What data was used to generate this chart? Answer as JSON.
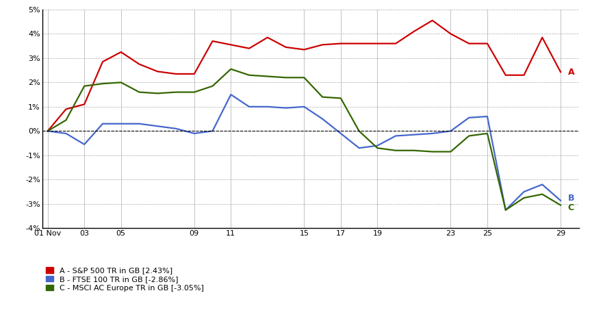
{
  "x_labels": [
    "01 Nov",
    "03",
    "05",
    "09",
    "11",
    "15",
    "17",
    "19",
    "23",
    "25",
    "29"
  ],
  "x_positions": [
    0,
    2,
    4,
    8,
    10,
    14,
    16,
    18,
    22,
    24,
    28
  ],
  "series": {
    "A": {
      "label": "A - S&P 500 TR in GB [2.43%]",
      "color": "#cc0000",
      "data_x": [
        0,
        1,
        2,
        3,
        4,
        5,
        6,
        7,
        8,
        9,
        10,
        11,
        12,
        13,
        14,
        15,
        16,
        17,
        18,
        19,
        20,
        21,
        22,
        23,
        24,
        25,
        26,
        27,
        28
      ],
      "data_y": [
        0.0,
        0.9,
        1.1,
        2.85,
        3.25,
        2.75,
        2.45,
        2.35,
        2.35,
        3.7,
        3.55,
        3.4,
        3.85,
        3.45,
        3.35,
        3.55,
        3.6,
        3.6,
        3.6,
        3.6,
        4.1,
        4.55,
        4.0,
        3.6,
        3.6,
        2.3,
        2.3,
        3.85,
        2.43
      ]
    },
    "B": {
      "label": "B - FTSE 100 TR in GB [-2.86%]",
      "color": "#4466cc",
      "data_x": [
        0,
        1,
        2,
        3,
        4,
        5,
        6,
        7,
        8,
        9,
        10,
        11,
        12,
        13,
        14,
        15,
        16,
        17,
        18,
        19,
        20,
        21,
        22,
        23,
        24,
        25,
        26,
        27,
        28
      ],
      "data_y": [
        0.0,
        -0.1,
        -0.55,
        0.3,
        0.3,
        0.3,
        0.2,
        0.1,
        -0.1,
        0.0,
        1.5,
        1.0,
        1.0,
        0.95,
        1.0,
        0.5,
        -0.1,
        -0.7,
        -0.6,
        -0.2,
        -0.15,
        -0.1,
        0.0,
        0.55,
        0.6,
        -3.25,
        -2.5,
        -2.2,
        -2.86
      ]
    },
    "C": {
      "label": "C - MSCI AC Europe TR in GB [-3.05%]",
      "color": "#336600",
      "data_x": [
        0,
        1,
        2,
        3,
        4,
        5,
        6,
        7,
        8,
        9,
        10,
        11,
        12,
        13,
        14,
        15,
        16,
        17,
        18,
        19,
        20,
        21,
        22,
        23,
        24,
        25,
        26,
        27,
        28
      ],
      "data_y": [
        0.0,
        0.45,
        1.85,
        1.95,
        2.0,
        1.6,
        1.55,
        1.6,
        1.6,
        1.85,
        2.55,
        2.3,
        2.25,
        2.2,
        2.2,
        1.4,
        1.35,
        0.0,
        -0.7,
        -0.8,
        -0.8,
        -0.85,
        -0.85,
        -0.2,
        -0.1,
        -3.25,
        -2.75,
        -2.6,
        -3.05
      ]
    }
  },
  "series_order": [
    "A",
    "B",
    "C"
  ],
  "label_offsets": {
    "A": 0.0,
    "B": 0.1,
    "C": -0.1
  },
  "ylim": [
    -4,
    5
  ],
  "yticks": [
    -4,
    -3,
    -2,
    -1,
    0,
    1,
    2,
    3,
    4,
    5
  ],
  "xlim": [
    -0.3,
    29.0
  ],
  "background_color": "#ffffff",
  "grid_color": "#aaaaaa",
  "zero_line_color": "#000000",
  "spine_color": "#000000",
  "line_width": 1.6,
  "font_size_ticks": 8,
  "font_size_legend": 8,
  "font_size_labels": 9
}
